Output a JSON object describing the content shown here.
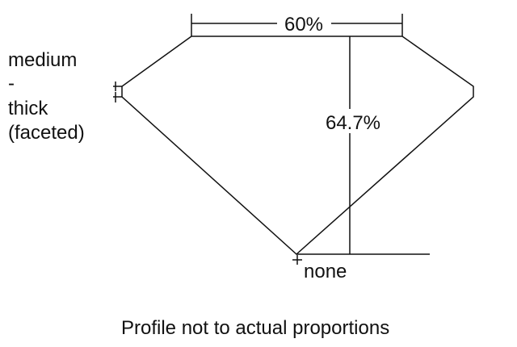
{
  "labels": {
    "table": "60%",
    "depth": "64.7%",
    "girdle_lines": [
      "medium",
      "-",
      "thick",
      "(faceted)"
    ],
    "culet": "none",
    "caption": "Profile not to actual proportions"
  },
  "colors": {
    "line": "#111111",
    "background": "#ffffff"
  }
}
